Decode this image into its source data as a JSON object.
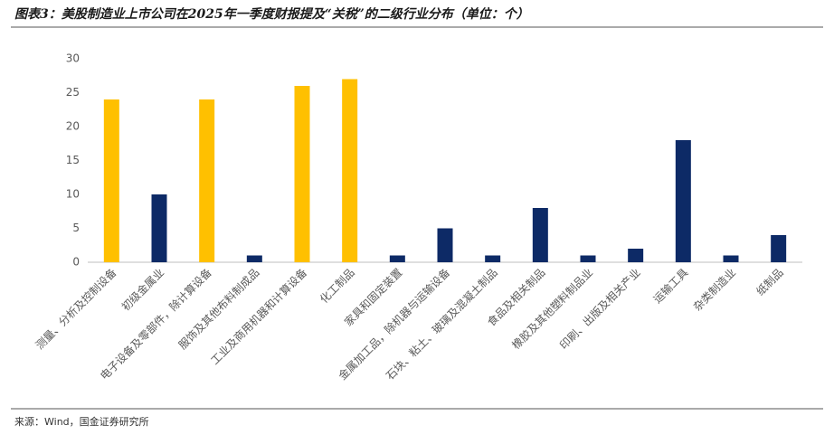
{
  "chart_data": {
    "type": "bar",
    "title": "图表3：美股制造业上市公司在2025年一季度财报提及“关税”的二级行业分布（单位：个）",
    "source": "来源：Wind，国金证券研究所",
    "categories": [
      "测量、分析及控制设备",
      "初级金属业",
      "电子设备及零部件，除计算设备",
      "服饰及其他布料制成品",
      "工业及商用机器和计算设备",
      "化工制品",
      "家具和固定装置",
      "金属加工品，除机器与运输设备",
      "石块、粘土、玻璃及混凝土制品",
      "食品及相关制品",
      "橡胶及其他塑料制品业",
      "印刷、出版及相关产业",
      "运输工具",
      "杂类制造业",
      "纸制品"
    ],
    "values": [
      24,
      10,
      24,
      1,
      26,
      27,
      1,
      5,
      1,
      8,
      1,
      2,
      18,
      1,
      4
    ],
    "colors": [
      "#ffc000",
      "#0d2a66",
      "#ffc000",
      "#0d2a66",
      "#ffc000",
      "#ffc000",
      "#0d2a66",
      "#0d2a66",
      "#0d2a66",
      "#0d2a66",
      "#0d2a66",
      "#0d2a66",
      "#0d2a66",
      "#0d2a66",
      "#0d2a66"
    ],
    "ylim": [
      0,
      30
    ],
    "yticks": [
      0,
      5,
      10,
      15,
      20,
      25,
      30
    ],
    "grid": false
  }
}
